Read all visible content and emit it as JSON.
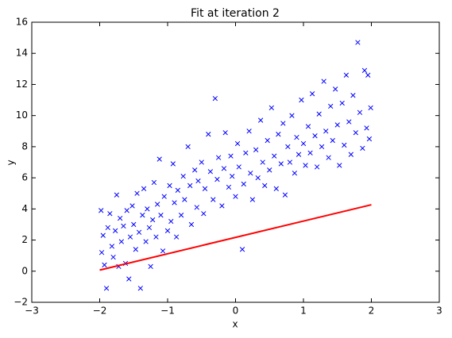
{
  "chart_data": {
    "type": "scatter",
    "title": "Fit at iteration 2",
    "x_label": "x",
    "y_label": "y",
    "xlim": [
      -3,
      3
    ],
    "ylim": [
      -2,
      16
    ],
    "xticks": [
      {
        "value": -3,
        "label": "−3"
      },
      {
        "value": -2,
        "label": "−2"
      },
      {
        "value": -1,
        "label": "−1"
      },
      0,
      1,
      2,
      3
    ],
    "yticks": [
      {
        "value": -2,
        "label": "−2"
      },
      0,
      2,
      4,
      6,
      8,
      10,
      12,
      14,
      16
    ],
    "points": {
      "color": "#0000ff",
      "x": [
        -1.98,
        -1.97,
        -1.95,
        -1.93,
        -1.9,
        -1.88,
        -1.85,
        -1.82,
        -1.8,
        -1.77,
        -1.75,
        -1.72,
        -1.7,
        -1.68,
        -1.65,
        -1.62,
        -1.6,
        -1.57,
        -1.55,
        -1.52,
        -1.5,
        -1.47,
        -1.45,
        -1.42,
        -1.4,
        -1.37,
        -1.35,
        -1.32,
        -1.3,
        -1.27,
        -1.25,
        -1.22,
        -1.2,
        -1.17,
        -1.15,
        -1.12,
        -1.1,
        -1.07,
        -1.05,
        -1.0,
        -0.97,
        -0.95,
        -0.92,
        -0.9,
        -0.87,
        -0.85,
        -0.8,
        -0.77,
        -0.75,
        -0.7,
        -0.67,
        -0.65,
        -0.6,
        -0.57,
        -0.55,
        -0.5,
        -0.47,
        -0.45,
        -0.4,
        -0.37,
        -0.33,
        -0.3,
        -0.27,
        -0.25,
        -0.2,
        -0.17,
        -0.15,
        -0.1,
        -0.07,
        -0.05,
        0.0,
        0.03,
        0.05,
        0.1,
        0.12,
        0.15,
        0.2,
        0.22,
        0.25,
        0.3,
        0.33,
        0.37,
        0.4,
        0.43,
        0.47,
        0.5,
        0.53,
        0.57,
        0.6,
        0.63,
        0.67,
        0.7,
        0.73,
        0.77,
        0.8,
        0.83,
        0.87,
        0.9,
        0.93,
        0.97,
        1.0,
        1.03,
        1.07,
        1.1,
        1.13,
        1.17,
        1.2,
        1.23,
        1.27,
        1.3,
        1.33,
        1.37,
        1.4,
        1.43,
        1.47,
        1.5,
        1.53,
        1.57,
        1.6,
        1.63,
        1.67,
        1.7,
        1.73,
        1.77,
        1.8,
        1.83,
        1.87,
        1.9,
        1.93,
        1.95,
        1.97,
        1.99
      ],
      "y": [
        3.9,
        1.2,
        2.3,
        0.4,
        -1.1,
        2.8,
        3.7,
        1.6,
        0.9,
        2.6,
        4.9,
        0.3,
        3.4,
        1.9,
        2.9,
        0.5,
        3.9,
        -0.5,
        2.2,
        4.2,
        3.0,
        1.4,
        5.0,
        2.5,
        -1.1,
        3.6,
        5.3,
        1.9,
        4.0,
        2.8,
        0.3,
        3.3,
        5.7,
        2.2,
        4.3,
        7.2,
        3.6,
        1.3,
        4.8,
        2.6,
        5.5,
        3.2,
        6.9,
        4.4,
        2.2,
        5.2,
        3.6,
        6.1,
        4.6,
        8.0,
        5.5,
        3.0,
        6.5,
        4.1,
        5.8,
        7.0,
        3.7,
        5.3,
        8.8,
        6.4,
        4.6,
        11.1,
        5.9,
        7.3,
        4.2,
        6.6,
        8.9,
        5.4,
        7.4,
        6.1,
        4.8,
        8.2,
        6.7,
        1.4,
        5.6,
        7.6,
        9.0,
        6.3,
        4.6,
        7.8,
        6.0,
        9.7,
        7.0,
        5.5,
        8.4,
        6.5,
        10.5,
        7.4,
        5.3,
        8.8,
        6.9,
        9.5,
        4.9,
        8.0,
        7.0,
        10.0,
        6.3,
        8.6,
        7.5,
        11.0,
        8.2,
        6.8,
        9.3,
        7.6,
        11.4,
        8.7,
        6.7,
        10.1,
        8.0,
        12.2,
        9.0,
        7.3,
        10.6,
        8.4,
        11.7,
        9.4,
        6.8,
        10.8,
        8.1,
        12.6,
        9.6,
        7.5,
        11.3,
        8.9,
        14.7,
        10.2,
        7.9,
        12.9,
        9.2,
        12.6,
        8.5,
        10.5
      ]
    },
    "fit_line": {
      "color": "#ff0000",
      "x": [
        -2,
        2
      ],
      "y": [
        0.07,
        4.27
      ]
    }
  }
}
